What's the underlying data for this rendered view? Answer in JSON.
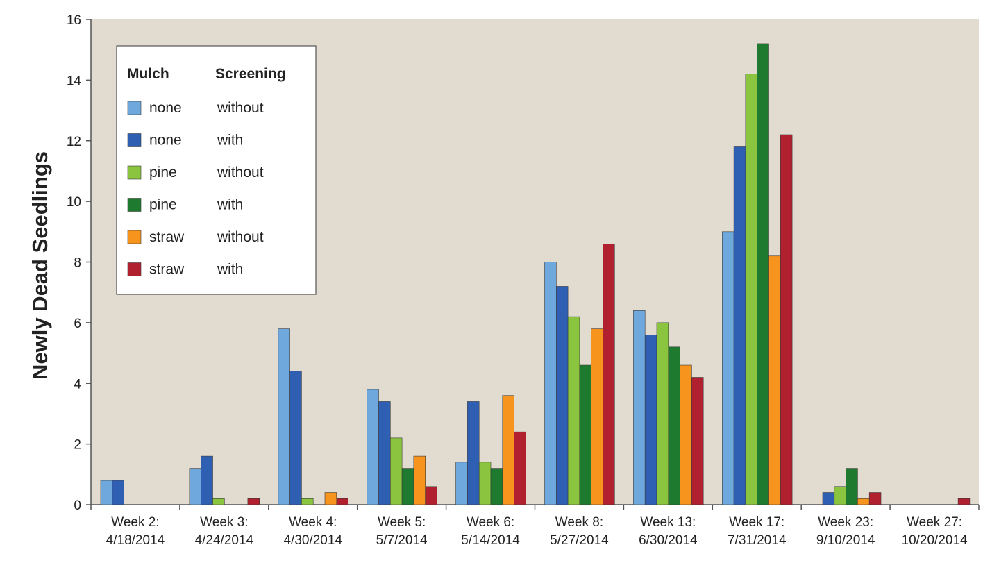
{
  "chart_data": {
    "type": "bar",
    "ylabel": "Newly Dead Seedlings",
    "ylim": [
      0,
      16
    ],
    "yticks": [
      "0",
      "2",
      "4",
      "6",
      "8",
      "10",
      "12",
      "14",
      "16"
    ],
    "categories": [
      [
        "Week 2:",
        "4/18/2014"
      ],
      [
        "Week 3:",
        "4/24/2014"
      ],
      [
        "Week 4:",
        "4/30/2014"
      ],
      [
        "Week 5:",
        "5/7/2014"
      ],
      [
        "Week 6:",
        "5/14/2014"
      ],
      [
        "Week 8:",
        "5/27/2014"
      ],
      [
        "Week 13:",
        "6/30/2014"
      ],
      [
        "Week 17:",
        "7/31/2014"
      ],
      [
        "Week 23:",
        "9/10/2014"
      ],
      [
        "Week 27:",
        "10/20/2014"
      ]
    ],
    "legend": {
      "headers": [
        "Mulch",
        "Screening"
      ],
      "placement": "top-left"
    },
    "series": [
      {
        "mulch": "none",
        "screening": "without",
        "color": "#6fa8dc",
        "values": [
          0.8,
          1.2,
          5.8,
          3.8,
          1.4,
          8.0,
          6.4,
          9.0,
          0,
          0
        ]
      },
      {
        "mulch": "none",
        "screening": "with",
        "color": "#2f5fb3",
        "values": [
          0.8,
          1.6,
          4.4,
          3.4,
          3.4,
          7.2,
          5.6,
          11.8,
          0.4,
          0
        ]
      },
      {
        "mulch": "pine",
        "screening": "without",
        "color": "#8bc540",
        "values": [
          0,
          0.2,
          0.2,
          2.2,
          1.4,
          6.2,
          6.0,
          14.2,
          0.6,
          0
        ]
      },
      {
        "mulch": "pine",
        "screening": "with",
        "color": "#1e7a2e",
        "values": [
          0,
          0,
          0,
          1.2,
          1.2,
          4.6,
          5.2,
          15.2,
          1.2,
          0
        ]
      },
      {
        "mulch": "straw",
        "screening": "without",
        "color": "#f7941d",
        "values": [
          0,
          0,
          0.4,
          1.6,
          3.6,
          5.8,
          4.6,
          8.2,
          0.2,
          0
        ]
      },
      {
        "mulch": "straw",
        "screening": "with",
        "color": "#b0202e",
        "values": [
          0,
          0.2,
          0.2,
          0.6,
          2.4,
          8.6,
          4.2,
          12.2,
          0.4,
          0.2
        ]
      }
    ],
    "colors": {
      "plot_background": "#e2dbd0",
      "axis": "#555555"
    }
  }
}
